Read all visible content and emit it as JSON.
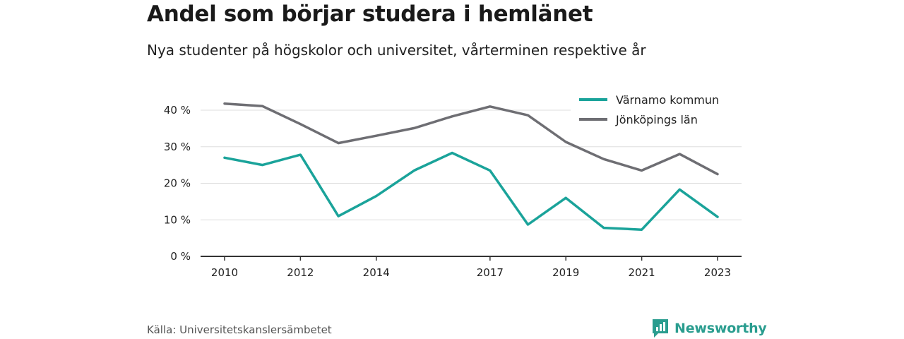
{
  "title": "Andel som börjar studera i hemlänet",
  "subtitle": "Nya studenter på högskolor och universitet, vårterminen respektive år",
  "source": "Källa: Universitetskanslersämbetet",
  "brand": {
    "name": "Newsworthy",
    "icon": "newsworthy-logo-icon",
    "color": "#2a9d8f"
  },
  "chart_data": {
    "type": "line",
    "x": [
      2010,
      2011,
      2012,
      2013,
      2014,
      2015,
      2016,
      2017,
      2018,
      2019,
      2020,
      2021,
      2022,
      2023
    ],
    "x_tick_labels": [
      "2010",
      "2012",
      "2014",
      "2017",
      "2019",
      "2021",
      "2023"
    ],
    "y_tick_labels": [
      "0 %",
      "10 %",
      "20 %",
      "30 %",
      "40 %"
    ],
    "ylim": [
      0,
      40
    ],
    "grid": true,
    "legend_position": "top-right",
    "series": [
      {
        "name": "Värnamo kommun",
        "color": "#1aa39a",
        "values": [
          27,
          25,
          27.8,
          11,
          16.5,
          23.5,
          28.3,
          23.5,
          8.7,
          16,
          7.8,
          7.3,
          18.3,
          10.8
        ]
      },
      {
        "name": "Jönköpings län",
        "color": "#6e6e73",
        "values": [
          41.8,
          41.1,
          36.2,
          31,
          33,
          35.1,
          38.3,
          41,
          38.6,
          31.3,
          26.6,
          23.5,
          28,
          22.5
        ]
      }
    ]
  }
}
